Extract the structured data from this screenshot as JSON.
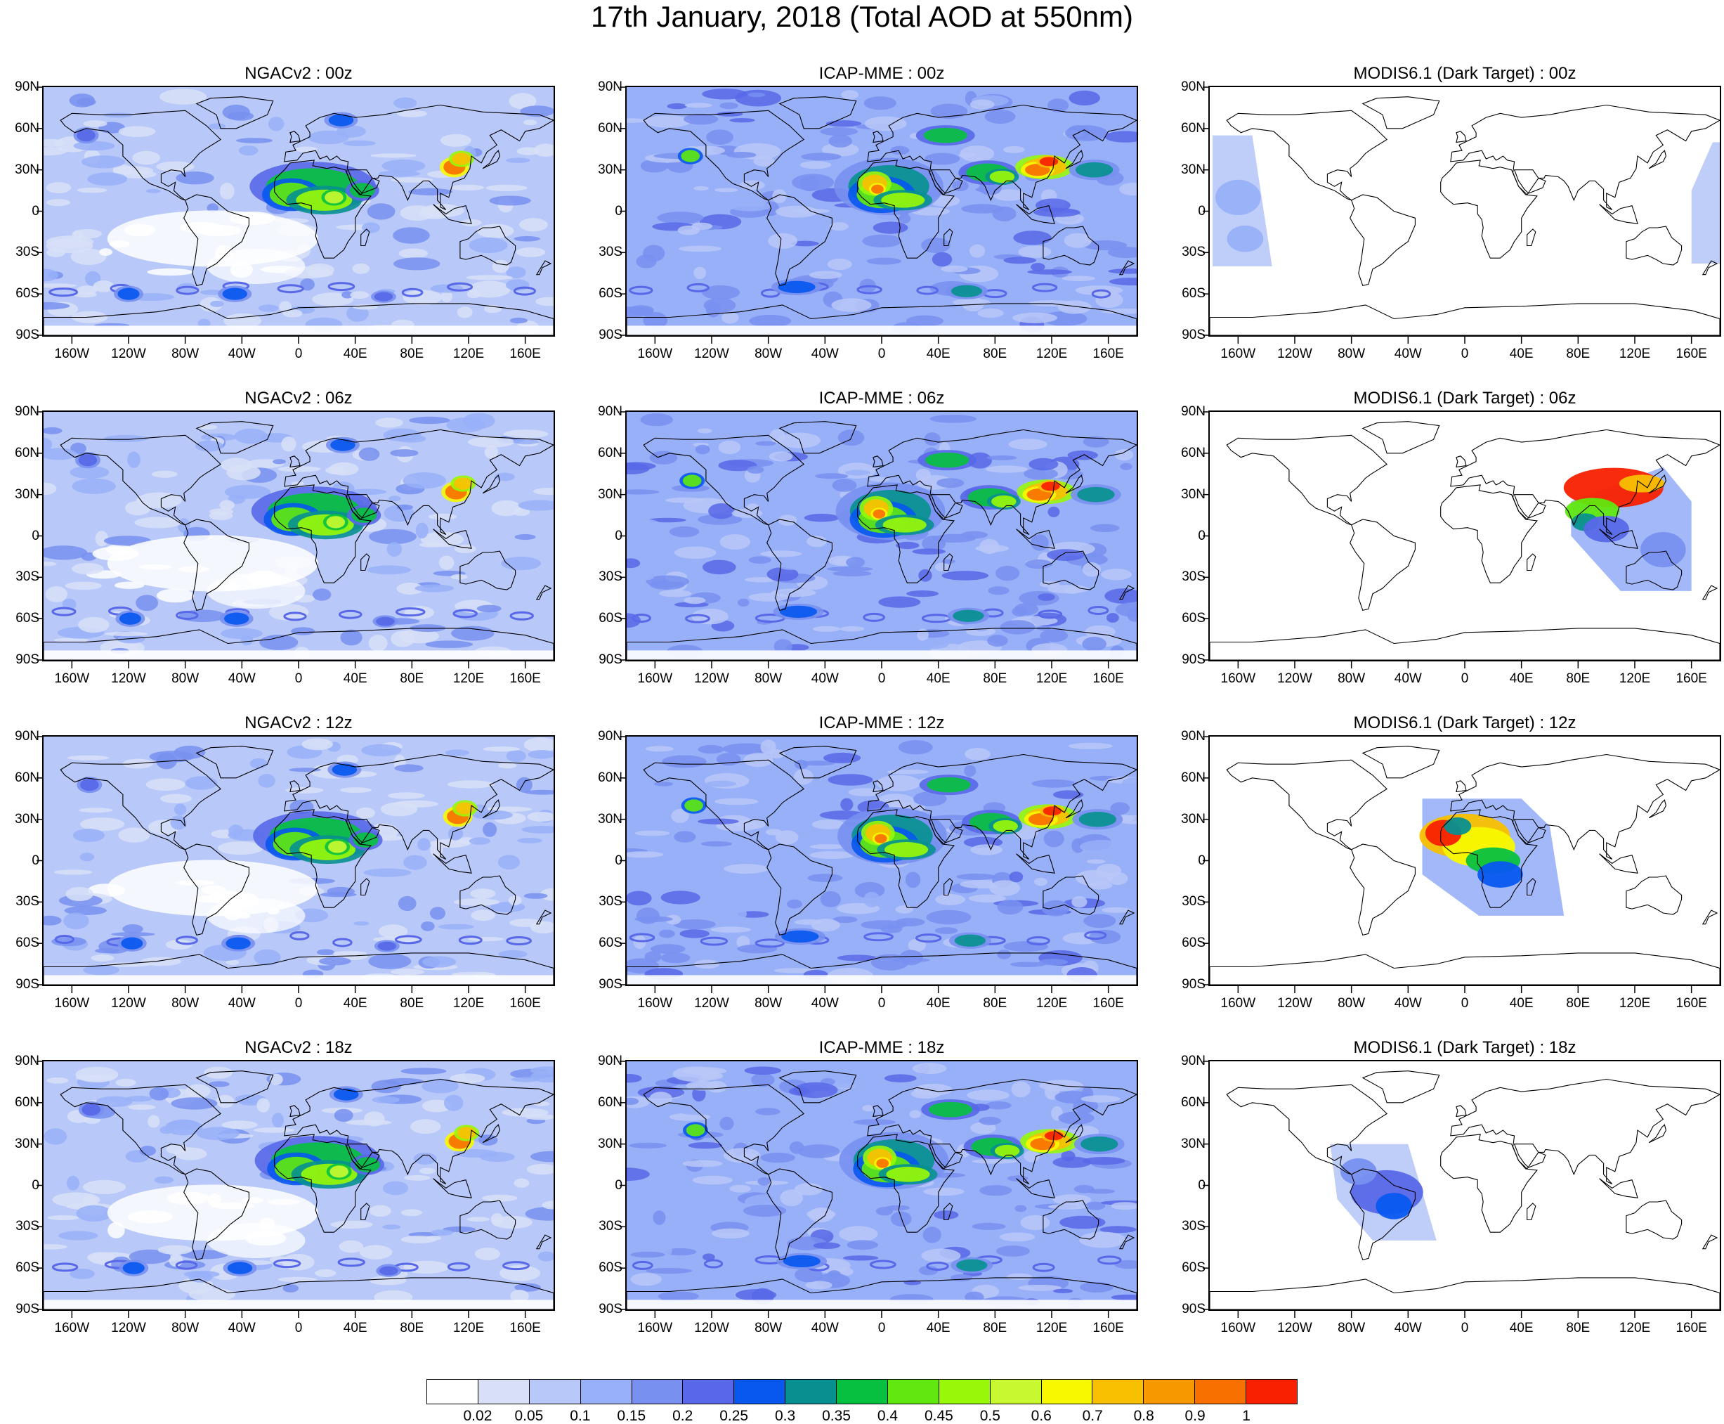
{
  "title": "17th January, 2018 (Total AOD at 550nm)",
  "lat_ticks": [
    "90N",
    "60N",
    "30N",
    "0",
    "30S",
    "60S",
    "90S"
  ],
  "lon_ticks": [
    "160W",
    "120W",
    "80W",
    "40W",
    "0",
    "40E",
    "80E",
    "120E",
    "160E"
  ],
  "panels": [
    {
      "title": "NGACv2 : 00z",
      "model": "NGACv2",
      "time": "00z",
      "coverage": "global"
    },
    {
      "title": "ICAP-MME : 00z",
      "model": "ICAP-MME",
      "time": "00z",
      "coverage": "global"
    },
    {
      "title": "MODIS6.1 (Dark Target) : 00z",
      "model": "MODIS6.1",
      "time": "00z",
      "coverage": "swath"
    },
    {
      "title": "NGACv2 : 06z",
      "model": "NGACv2",
      "time": "06z",
      "coverage": "global"
    },
    {
      "title": "ICAP-MME : 06z",
      "model": "ICAP-MME",
      "time": "06z",
      "coverage": "global"
    },
    {
      "title": "MODIS6.1 (Dark Target) : 06z",
      "model": "MODIS6.1",
      "time": "06z",
      "coverage": "swath"
    },
    {
      "title": "NGACv2 : 12z",
      "model": "NGACv2",
      "time": "12z",
      "coverage": "global"
    },
    {
      "title": "ICAP-MME : 12z",
      "model": "ICAP-MME",
      "time": "12z",
      "coverage": "global"
    },
    {
      "title": "MODIS6.1 (Dark Target) : 12z",
      "model": "MODIS6.1",
      "time": "12z",
      "coverage": "swath"
    },
    {
      "title": "NGACv2 : 18z",
      "model": "NGACv2",
      "time": "18z",
      "coverage": "global"
    },
    {
      "title": "ICAP-MME : 18z",
      "model": "ICAP-MME",
      "time": "18z",
      "coverage": "global"
    },
    {
      "title": "MODIS6.1 (Dark Target) : 18z",
      "model": "MODIS6.1",
      "time": "18z",
      "coverage": "swath"
    }
  ],
  "colorbar": {
    "labels": [
      "0.02",
      "0.05",
      "0.1",
      "0.15",
      "0.2",
      "0.25",
      "0.3",
      "0.35",
      "0.4",
      "0.45",
      "0.5",
      "0.6",
      "0.7",
      "0.8",
      "0.9",
      "1"
    ],
    "colors": [
      "#ffffff",
      "#d8e0f8",
      "#b8c8f8",
      "#98b0f8",
      "#7890f0",
      "#5868e8",
      "#0858f0",
      "#089090",
      "#08c040",
      "#60e810",
      "#98f808",
      "#c8f830",
      "#f8f800",
      "#f8c000",
      "#f89800",
      "#f87000",
      "#f82000"
    ]
  }
}
